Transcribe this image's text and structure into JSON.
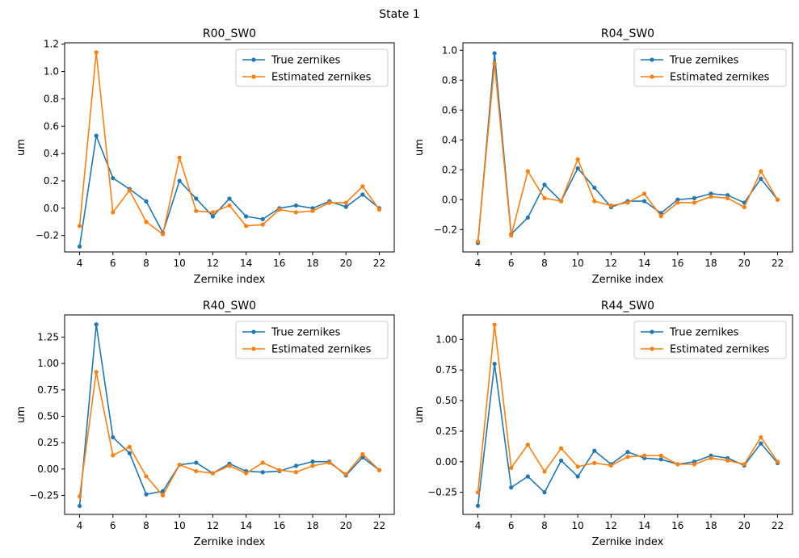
{
  "suptitle": "State 1",
  "colors": {
    "true": "#1f77b4",
    "estimated": "#ff7f0e"
  },
  "legend_labels": [
    "True zernikes",
    "Estimated zernikes"
  ],
  "chart_data": [
    {
      "type": "line",
      "title": "R00_SW0",
      "xlabel": "Zernike index",
      "ylabel": "um",
      "legend": "top-right",
      "x": [
        4,
        5,
        6,
        7,
        8,
        9,
        10,
        11,
        12,
        13,
        14,
        15,
        16,
        17,
        18,
        19,
        20,
        21,
        22
      ],
      "xlim": [
        3.1,
        22.9
      ],
      "ylim": [
        -0.32,
        1.21
      ],
      "xticks": [
        4,
        6,
        8,
        10,
        12,
        14,
        16,
        18,
        20,
        22
      ],
      "yticks": [
        -0.2,
        0.0,
        0.2,
        0.4,
        0.6,
        0.8,
        1.0,
        1.2
      ],
      "ytick_labels": [
        "−0.2",
        "0.0",
        "0.2",
        "0.4",
        "0.6",
        "0.8",
        "1.0",
        "1.2"
      ],
      "series": [
        {
          "name": "True zernikes",
          "values": [
            -0.28,
            0.53,
            0.22,
            0.14,
            0.05,
            -0.18,
            0.2,
            0.07,
            -0.06,
            0.07,
            -0.06,
            -0.08,
            0.0,
            0.02,
            0.0,
            0.05,
            0.01,
            0.1,
            0.0
          ]
        },
        {
          "name": "Estimated zernikes",
          "values": [
            -0.13,
            1.14,
            -0.03,
            0.13,
            -0.1,
            -0.19,
            0.37,
            -0.02,
            -0.03,
            0.02,
            -0.13,
            -0.12,
            -0.01,
            -0.03,
            -0.02,
            0.04,
            0.04,
            0.16,
            -0.01
          ]
        }
      ]
    },
    {
      "type": "line",
      "title": "R04_SW0",
      "xlabel": "Zernike index",
      "ylabel": "um",
      "legend": "top-right",
      "x": [
        4,
        5,
        6,
        7,
        8,
        9,
        10,
        11,
        12,
        13,
        14,
        15,
        16,
        17,
        18,
        19,
        20,
        21,
        22
      ],
      "xlim": [
        3.1,
        22.9
      ],
      "ylim": [
        -0.35,
        1.05
      ],
      "xticks": [
        4,
        6,
        8,
        10,
        12,
        14,
        16,
        18,
        20,
        22
      ],
      "yticks": [
        -0.2,
        0.0,
        0.2,
        0.4,
        0.6,
        0.8,
        1.0
      ],
      "ytick_labels": [
        "−0.2",
        "0.0",
        "0.2",
        "0.4",
        "0.6",
        "0.8",
        "1.0"
      ],
      "series": [
        {
          "name": "True zernikes",
          "values": [
            -0.29,
            0.98,
            -0.23,
            -0.12,
            0.1,
            -0.01,
            0.21,
            0.08,
            -0.05,
            -0.01,
            -0.01,
            -0.09,
            0.0,
            0.01,
            0.04,
            0.03,
            -0.02,
            0.14,
            0.0
          ]
        },
        {
          "name": "Estimated zernikes",
          "values": [
            -0.28,
            0.91,
            -0.24,
            0.19,
            0.01,
            -0.01,
            0.27,
            -0.01,
            -0.04,
            -0.02,
            0.04,
            -0.11,
            -0.02,
            -0.02,
            0.02,
            0.01,
            -0.05,
            0.19,
            0.0
          ]
        }
      ]
    },
    {
      "type": "line",
      "title": "R40_SW0",
      "xlabel": "Zernike index",
      "ylabel": "um",
      "legend": "top-right",
      "x": [
        4,
        5,
        6,
        7,
        8,
        9,
        10,
        11,
        12,
        13,
        14,
        15,
        16,
        17,
        18,
        19,
        20,
        21,
        22
      ],
      "xlim": [
        3.1,
        22.9
      ],
      "ylim": [
        -0.43,
        1.46
      ],
      "xticks": [
        4,
        6,
        8,
        10,
        12,
        14,
        16,
        18,
        20,
        22
      ],
      "yticks": [
        -0.25,
        0.0,
        0.25,
        0.5,
        0.75,
        1.0,
        1.25
      ],
      "ytick_labels": [
        "−0.25",
        "0.00",
        "0.25",
        "0.50",
        "0.75",
        "1.00",
        "1.25"
      ],
      "series": [
        {
          "name": "True zernikes",
          "values": [
            -0.35,
            1.37,
            0.3,
            0.15,
            -0.24,
            -0.21,
            0.04,
            0.06,
            -0.04,
            0.05,
            -0.02,
            -0.03,
            -0.02,
            0.03,
            0.07,
            0.07,
            -0.06,
            0.11,
            -0.01
          ]
        },
        {
          "name": "Estimated zernikes",
          "values": [
            -0.26,
            0.92,
            0.13,
            0.21,
            -0.07,
            -0.25,
            0.04,
            -0.02,
            -0.04,
            0.03,
            -0.04,
            0.06,
            -0.01,
            -0.03,
            0.03,
            0.06,
            -0.05,
            0.14,
            -0.01
          ]
        }
      ]
    },
    {
      "type": "line",
      "title": "R44_SW0",
      "xlabel": "Zernike index",
      "ylabel": "um",
      "legend": "top-right",
      "x": [
        4,
        5,
        6,
        7,
        8,
        9,
        10,
        11,
        12,
        13,
        14,
        15,
        16,
        17,
        18,
        19,
        20,
        21,
        22
      ],
      "xlim": [
        3.1,
        22.9
      ],
      "ylim": [
        -0.43,
        1.2
      ],
      "xticks": [
        4,
        6,
        8,
        10,
        12,
        14,
        16,
        18,
        20,
        22
      ],
      "yticks": [
        -0.25,
        0.0,
        0.25,
        0.5,
        0.75,
        1.0
      ],
      "ytick_labels": [
        "−0.25",
        "0.00",
        "0.25",
        "0.50",
        "0.75",
        "1.00"
      ],
      "series": [
        {
          "name": "True zernikes",
          "values": [
            -0.36,
            0.8,
            -0.21,
            -0.12,
            -0.25,
            0.01,
            -0.12,
            0.09,
            -0.02,
            0.08,
            0.03,
            0.02,
            -0.02,
            0.0,
            0.05,
            0.03,
            -0.03,
            0.15,
            -0.01
          ]
        },
        {
          "name": "Estimated zernikes",
          "values": [
            -0.25,
            1.12,
            -0.05,
            0.14,
            -0.08,
            0.11,
            -0.04,
            -0.01,
            -0.03,
            0.04,
            0.05,
            0.05,
            -0.02,
            -0.02,
            0.03,
            0.01,
            -0.02,
            0.2,
            0.0
          ]
        }
      ]
    }
  ]
}
